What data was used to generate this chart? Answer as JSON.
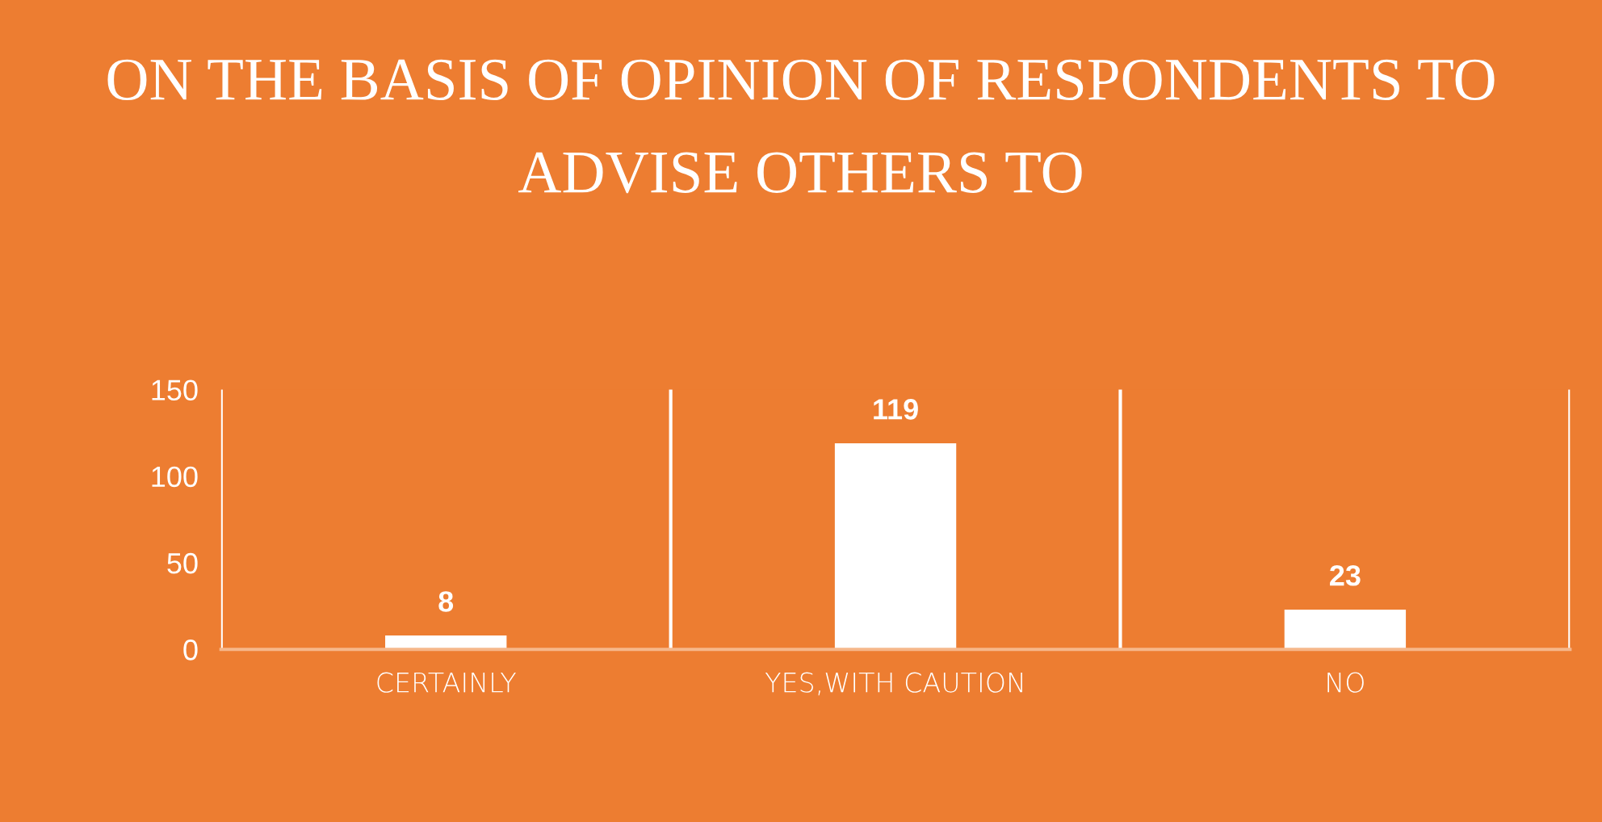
{
  "chart_data": {
    "type": "bar",
    "title": "ON THE BASIS OF OPINION OF RESPONDENTS TO ADVISE OTHERS TO",
    "categories": [
      "CERTAINLY",
      "YES,WITH CAUTION",
      "NO"
    ],
    "values": [
      8,
      119,
      23
    ],
    "color": "#ffffff",
    "ylim": [
      0,
      150
    ],
    "yticks": [
      0,
      50,
      100,
      150
    ],
    "grid": "x",
    "data_labels": true
  }
}
